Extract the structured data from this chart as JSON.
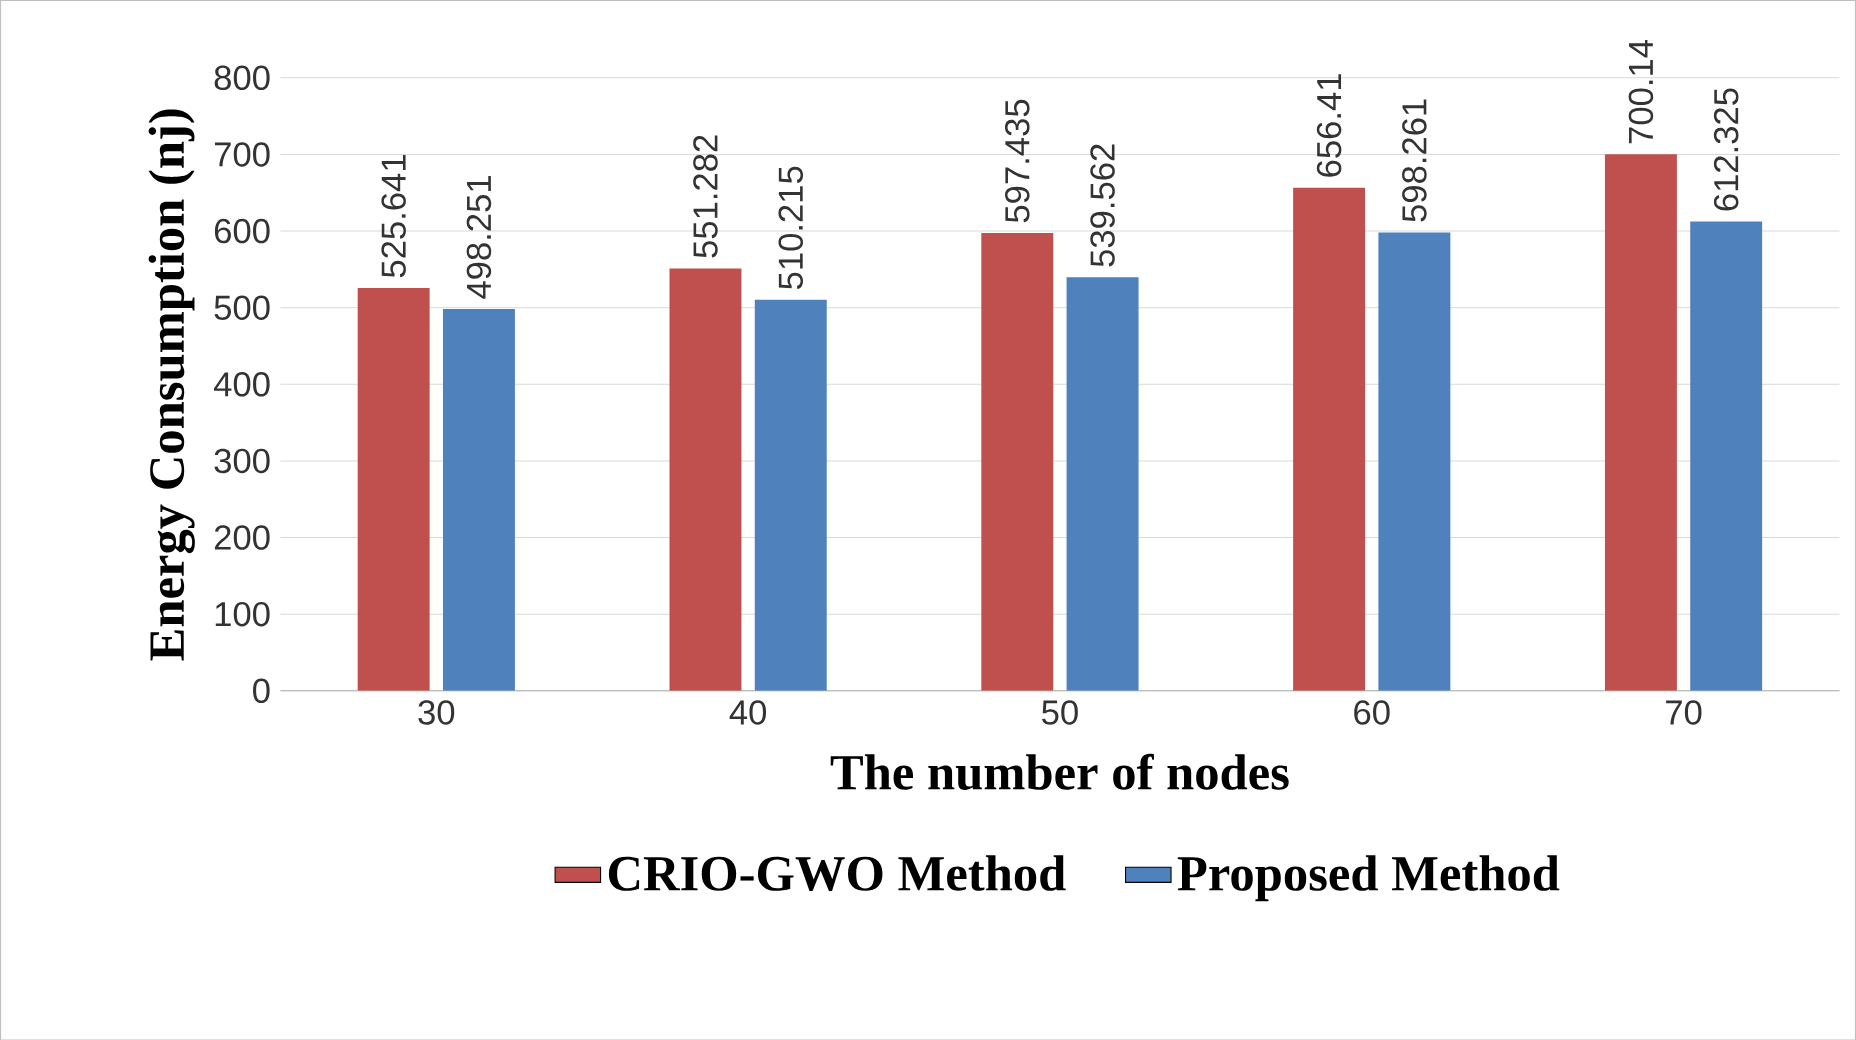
{
  "chart_data": {
    "type": "bar",
    "xlabel": "The number of nodes",
    "ylabel": "Energy Consumption (nj)",
    "categories": [
      "30",
      "40",
      "50",
      "60",
      "70"
    ],
    "series": [
      {
        "name": "CRIO-GWO Method",
        "color": "#c0504d",
        "values": [
          525.641,
          551.282,
          597.435,
          656.41,
          700.14
        ]
      },
      {
        "name": "Proposed Method",
        "color": "#4f81bd",
        "values": [
          498.251,
          510.215,
          539.562,
          598.261,
          612.325
        ]
      }
    ],
    "ylim": [
      0,
      800
    ],
    "yticks": [
      0,
      100,
      200,
      300,
      400,
      500,
      600,
      700,
      800
    ],
    "grid": "y",
    "legend": "bottom",
    "data_labels": true
  }
}
